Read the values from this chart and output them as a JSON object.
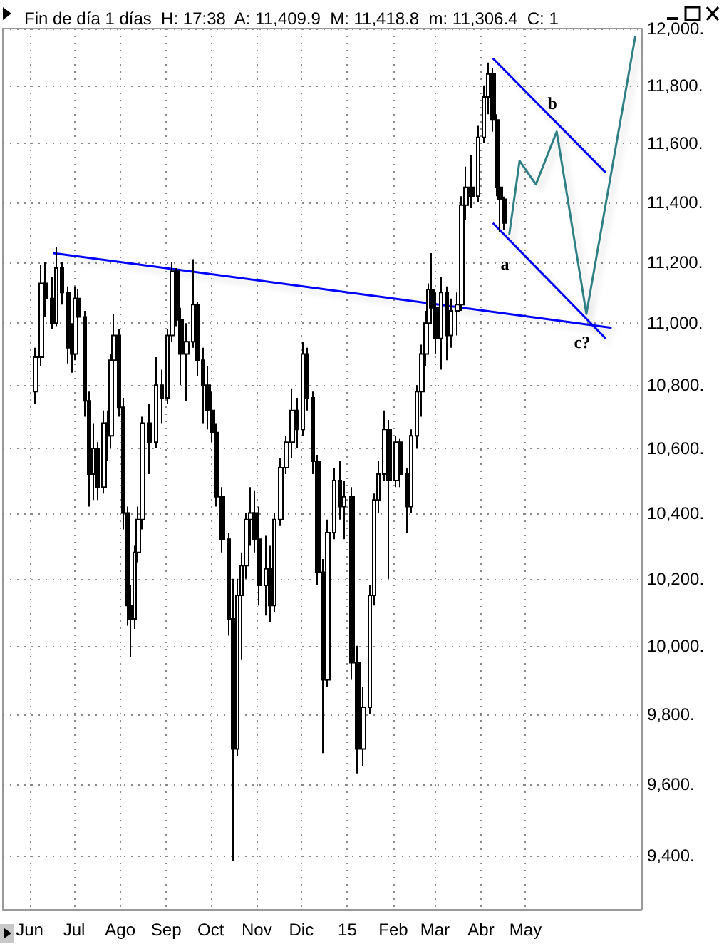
{
  "chart_data": {
    "type": "candlestick",
    "title": "Fin de día 1 días  H: 17:38  A: 11,409.9  M: 11,418.8  m: 11,306.4  C: 1",
    "log": true,
    "grid": true,
    "marker": "none",
    "line_style": "solid",
    "xlim": [
      "2014-05-14",
      "2015-07-18"
    ],
    "xticks": [
      {
        "value": "2014-06-01",
        "label": "Jun"
      },
      {
        "value": "2014-07-01",
        "label": "Jul"
      },
      {
        "value": "2014-08-01",
        "label": "Ago"
      },
      {
        "value": "2014-09-01",
        "label": "Sep"
      },
      {
        "value": "2014-10-01",
        "label": "Oct"
      },
      {
        "value": "2014-11-01",
        "label": "Nov"
      },
      {
        "value": "2014-12-01",
        "label": "Dic"
      },
      {
        "value": "2015-01-01",
        "label": "15"
      },
      {
        "value": "2015-02-01",
        "label": "Feb"
      },
      {
        "value": "2015-03-01",
        "label": "Mar"
      },
      {
        "value": "2015-04-01",
        "label": "Abr"
      },
      {
        "value": "2015-05-01",
        "label": "May"
      }
    ],
    "ylim": [
      9250,
      12000
    ],
    "yticks": [
      {
        "value": 9400,
        "label": "9,400."
      },
      {
        "value": 9600,
        "label": "9,600."
      },
      {
        "value": 9800,
        "label": "9,800."
      },
      {
        "value": 10000,
        "label": "10,000."
      },
      {
        "value": 10200,
        "label": "10,200."
      },
      {
        "value": 10400,
        "label": "10,400."
      },
      {
        "value": 10600,
        "label": "10,600."
      },
      {
        "value": 10800,
        "label": "10,800."
      },
      {
        "value": 11000,
        "label": "11,000."
      },
      {
        "value": 11200,
        "label": "11,200."
      },
      {
        "value": 11400,
        "label": "11,400."
      },
      {
        "value": 11600,
        "label": "11,600."
      },
      {
        "value": 11800,
        "label": "11,800."
      },
      {
        "value": 12000,
        "label": "12,000."
      }
    ],
    "series": [
      {
        "color": "#000000",
        "x": [
          "2014-06-05",
          "2014-06-09",
          "2014-06-12",
          "2014-06-16",
          "2014-06-19",
          "2014-06-23",
          "2014-06-27",
          "2014-06-30",
          "2014-07-02",
          "2014-07-04",
          "2014-07-08",
          "2014-07-11",
          "2014-07-14",
          "2014-07-17",
          "2014-07-21",
          "2014-07-24",
          "2014-07-26",
          "2014-07-28",
          "2014-07-31",
          "2014-08-03",
          "2014-08-06",
          "2014-08-08",
          "2014-08-11",
          "2014-08-13",
          "2014-08-16",
          "2014-08-21",
          "2014-08-25",
          "2014-08-29",
          "2014-09-02",
          "2014-09-05",
          "2014-09-08",
          "2014-09-11",
          "2014-09-15",
          "2014-09-19",
          "2014-09-22",
          "2014-09-26",
          "2014-09-29",
          "2014-10-02",
          "2014-10-05",
          "2014-10-09",
          "2014-10-13",
          "2014-10-16",
          "2014-10-19",
          "2014-10-22",
          "2014-10-25",
          "2014-10-28",
          "2014-10-31",
          "2014-11-03",
          "2014-11-07",
          "2014-11-10",
          "2014-11-13",
          "2014-11-17",
          "2014-11-21",
          "2014-11-25",
          "2014-11-28",
          "2014-12-02",
          "2014-12-05",
          "2014-12-09",
          "2014-12-12",
          "2014-12-16",
          "2014-12-19",
          "2014-12-23",
          "2014-12-27",
          "2014-12-30",
          "2015-01-04",
          "2015-01-08",
          "2015-01-12",
          "2015-01-16",
          "2015-01-19",
          "2015-01-22",
          "2015-01-26",
          "2015-01-29",
          "2015-02-03",
          "2015-02-06",
          "2015-02-10",
          "2015-02-13",
          "2015-02-17",
          "2015-02-20",
          "2015-02-23",
          "2015-02-25",
          "2015-02-27",
          "2015-03-02",
          "2015-03-05",
          "2015-03-09",
          "2015-03-12",
          "2015-03-16",
          "2015-03-19",
          "2015-03-22",
          "2015-03-26",
          "2015-03-30",
          "2015-04-03",
          "2015-04-06",
          "2015-04-09",
          "2015-04-12",
          "2015-04-14",
          "2015-04-17"
        ],
        "ohlc": [
          [
            10780,
            10920,
            10740,
            10890
          ],
          [
            10890,
            11190,
            10860,
            11130
          ],
          [
            11130,
            11200,
            11020,
            11080
          ],
          [
            11080,
            11150,
            10980,
            11000
          ],
          [
            11000,
            11250,
            10990,
            11180
          ],
          [
            11180,
            11200,
            11060,
            11100
          ],
          [
            11100,
            11120,
            10870,
            10920
          ],
          [
            10920,
            11000,
            10840,
            10900
          ],
          [
            10900,
            11120,
            10880,
            11080
          ],
          [
            11080,
            11110,
            10990,
            11020
          ],
          [
            11020,
            11040,
            10700,
            10750
          ],
          [
            10750,
            10780,
            10420,
            10520
          ],
          [
            10520,
            10680,
            10440,
            10600
          ],
          [
            10600,
            10620,
            10440,
            10480
          ],
          [
            10480,
            10720,
            10460,
            10680
          ],
          [
            10680,
            10720,
            10560,
            10640
          ],
          [
            10640,
            10900,
            10600,
            10880
          ],
          [
            10880,
            11030,
            10850,
            10960
          ],
          [
            10960,
            10980,
            10700,
            10730
          ],
          [
            10730,
            10760,
            10350,
            10400
          ],
          [
            10400,
            10420,
            10060,
            10120
          ],
          [
            10120,
            10180,
            9966,
            10080
          ],
          [
            10080,
            10300,
            10050,
            10280
          ],
          [
            10280,
            10420,
            10250,
            10380
          ],
          [
            10380,
            10700,
            10350,
            10680
          ],
          [
            10680,
            10740,
            10520,
            10620
          ],
          [
            10620,
            10890,
            10600,
            10800
          ],
          [
            10800,
            10850,
            10680,
            10760
          ],
          [
            10760,
            10980,
            10740,
            10960
          ],
          [
            10960,
            11200,
            10940,
            11170
          ],
          [
            11170,
            11180,
            10990,
            11010
          ],
          [
            11010,
            11050,
            10800,
            10900
          ],
          [
            10900,
            11000,
            10750,
            10940
          ],
          [
            10940,
            11210,
            10920,
            11060
          ],
          [
            11060,
            11070,
            10830,
            10880
          ],
          [
            10880,
            10920,
            10680,
            10800
          ],
          [
            10800,
            10860,
            10660,
            10720
          ],
          [
            10720,
            10780,
            10620,
            10650
          ],
          [
            10650,
            10680,
            10420,
            10450
          ],
          [
            10450,
            10480,
            10280,
            10320
          ],
          [
            10320,
            10340,
            10030,
            10080
          ],
          [
            10080,
            10200,
            9385,
            9700
          ],
          [
            9700,
            10200,
            9680,
            10150
          ],
          [
            10150,
            10280,
            9960,
            10240
          ],
          [
            10240,
            10400,
            10200,
            10380
          ],
          [
            10380,
            10480,
            10300,
            10400
          ],
          [
            10400,
            10470,
            10280,
            10320
          ],
          [
            10320,
            10420,
            10120,
            10180
          ],
          [
            10180,
            10330,
            10090,
            10230
          ],
          [
            10230,
            10300,
            10070,
            10120
          ],
          [
            10120,
            10400,
            10100,
            10380
          ],
          [
            10380,
            10570,
            10360,
            10540
          ],
          [
            10540,
            10640,
            10520,
            10620
          ],
          [
            10620,
            10790,
            10570,
            10720
          ],
          [
            10720,
            10760,
            10600,
            10660
          ],
          [
            10660,
            10940,
            10640,
            10900
          ],
          [
            10900,
            10920,
            10720,
            10760
          ],
          [
            10760,
            10780,
            10520,
            10560
          ],
          [
            10560,
            10580,
            10180,
            10220
          ],
          [
            10220,
            10260,
            9688,
            9900
          ],
          [
            9900,
            10380,
            9880,
            10340
          ],
          [
            10340,
            10540,
            10320,
            10500
          ],
          [
            10500,
            10560,
            10380,
            10420
          ],
          [
            10420,
            10500,
            10320,
            10450
          ],
          [
            10450,
            10480,
            9900,
            9950
          ],
          [
            9950,
            10000,
            9630,
            9700
          ],
          [
            9700,
            9880,
            9650,
            9820
          ],
          [
            9820,
            10180,
            9800,
            10150
          ],
          [
            10150,
            10460,
            10120,
            10440
          ],
          [
            10440,
            10560,
            10400,
            10520
          ],
          [
            10520,
            10720,
            10500,
            10660
          ],
          [
            10660,
            10690,
            10200,
            10500
          ],
          [
            10500,
            10640,
            10480,
            10620
          ],
          [
            10620,
            10630,
            10480,
            10520
          ],
          [
            10520,
            10540,
            10340,
            10420
          ],
          [
            10420,
            10660,
            10400,
            10640
          ],
          [
            10640,
            10800,
            10600,
            10780
          ],
          [
            10780,
            10930,
            10700,
            10900
          ],
          [
            10900,
            11040,
            10860,
            11000
          ],
          [
            11000,
            11130,
            10980,
            11110
          ],
          [
            11110,
            11230,
            11010,
            11050
          ],
          [
            11050,
            11100,
            10900,
            10950
          ],
          [
            10950,
            11150,
            10850,
            11100
          ],
          [
            11100,
            11120,
            10880,
            10960
          ],
          [
            10960,
            11080,
            10920,
            11040
          ],
          [
            11040,
            11100,
            10960,
            11060
          ],
          [
            11060,
            11420,
            11040,
            11390
          ],
          [
            11390,
            11520,
            11340,
            11450
          ],
          [
            11450,
            11560,
            11380,
            11420
          ],
          [
            11420,
            11660,
            11400,
            11620
          ],
          [
            11620,
            11800,
            11600,
            11760
          ],
          [
            11760,
            11880,
            11700,
            11840
          ],
          [
            11840,
            11860,
            11640,
            11680
          ],
          [
            11680,
            11700,
            11420,
            11450
          ],
          [
            11450,
            11460,
            11300,
            11410
          ],
          [
            11409.9,
            11418.8,
            11306.4,
            11330
          ]
        ]
      },
      {
        "type": "line",
        "color": "#0000ff",
        "x": [
          "2014-06-17",
          "2015-06-28"
        ],
        "values": [
          11230,
          10985
        ]
      },
      {
        "type": "line",
        "color": "#0000ff",
        "x": [
          "2015-04-09",
          "2015-06-24"
        ],
        "values": [
          11895,
          11500
        ]
      },
      {
        "type": "line",
        "color": "#0000ff",
        "x": [
          "2015-04-09",
          "2015-06-24"
        ],
        "values": [
          11330,
          10950
        ]
      },
      {
        "type": "line",
        "color": "#2f7f86",
        "x": [
          "2015-04-20",
          "2015-04-27",
          "2015-05-08",
          "2015-05-22",
          "2015-06-11",
          "2015-07-14"
        ],
        "values": [
          11290,
          11540,
          11460,
          11640,
          11030,
          11975
        ]
      }
    ],
    "annotations": [
      {
        "text": "a",
        "x": "2015-04-20",
        "y": 11290
      },
      {
        "text": "b",
        "x": "2015-05-22",
        "y": 11640
      },
      {
        "text": "c?",
        "x": "2015-06-11",
        "y": 11030
      }
    ]
  }
}
